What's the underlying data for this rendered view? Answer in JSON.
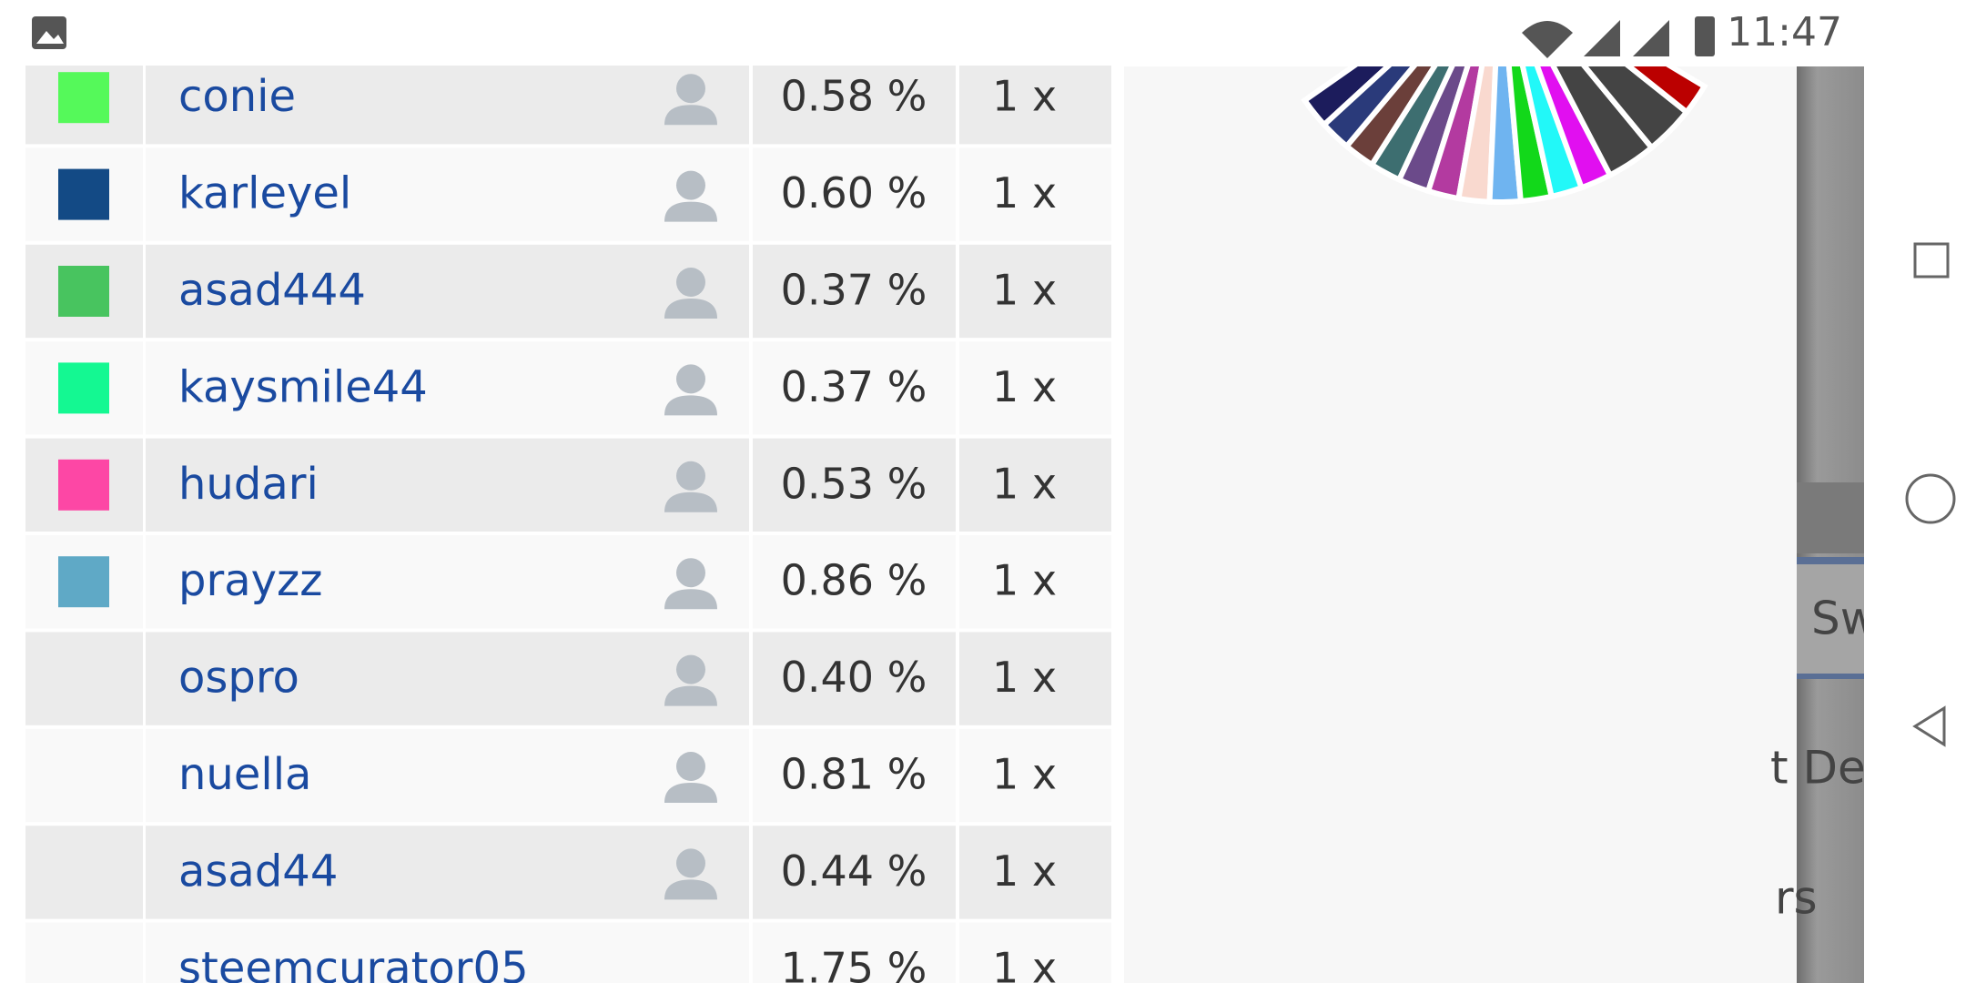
{
  "status_bar": {
    "time": "11:47"
  },
  "table": {
    "rows": [
      {
        "color": "#55f95a",
        "name": "conie",
        "share": "0.58 %",
        "count": "1 x"
      },
      {
        "color": "#134a85",
        "name": "karleyel",
        "share": "0.60 %",
        "count": "1 x"
      },
      {
        "color": "#48c45f",
        "name": "asad444",
        "share": "0.37 %",
        "count": "1 x"
      },
      {
        "color": "#14f892",
        "name": "kaysmile44",
        "share": "0.37 %",
        "count": "1 x"
      },
      {
        "color": "#fd47a5",
        "name": "hudari",
        "share": "0.53 %",
        "count": "1 x"
      },
      {
        "color": "#5fa9c6",
        "name": "prayzz",
        "share": "0.86 %",
        "count": "1 x"
      },
      {
        "name": "ospro",
        "share": "0.40 %",
        "count": "1 x"
      },
      {
        "name": "nuella",
        "share": "0.81 %",
        "count": "1 x"
      },
      {
        "name": "asad44",
        "share": "0.44 %",
        "count": "1 x"
      },
      {
        "name": "steemcurator05",
        "share": "1.75 %",
        "count": "1 x"
      }
    ]
  },
  "side_panel": {
    "texts": [
      "Sw",
      "t De",
      "rs"
    ]
  }
}
